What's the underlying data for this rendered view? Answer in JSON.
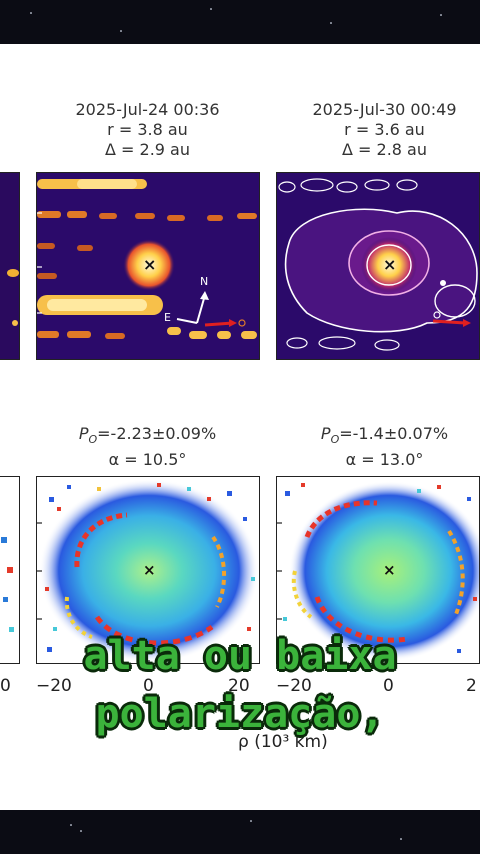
{
  "panels_top": [
    {
      "date": "2025-Jul-24 00:36",
      "r": "r = 3.8 au",
      "delta": "Δ = 2.9 au"
    },
    {
      "date": "2025-Jul-30 00:49",
      "r": "r = 3.6 au",
      "delta": "Δ = 2.8 au"
    }
  ],
  "panels_bottom": [
    {
      "p0": "P",
      "p0_sub": "O",
      "p0_value": "=-2.23±0.09%",
      "alpha": "α = 10.5°"
    },
    {
      "p0": "P",
      "p0_sub": "O",
      "p0_value": "=-1.4±0.07%",
      "alpha": "α = 13.0°"
    }
  ],
  "compass": {
    "north": "N",
    "east": "E"
  },
  "center_marker": "×",
  "x_ticks": [
    "−20",
    "0",
    "20",
    "−20",
    "0",
    "2"
  ],
  "left_edge_tick": "0",
  "x_axis_label": "ρ (10³ km)",
  "caption": {
    "line1": "alta ou baixa",
    "line2": "polarização,"
  }
}
